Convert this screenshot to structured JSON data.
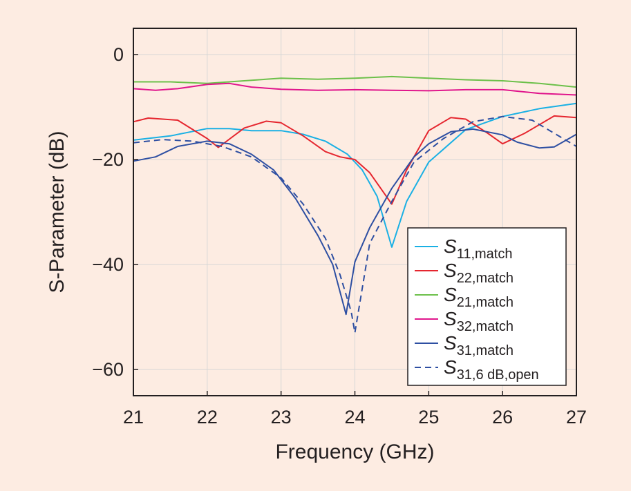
{
  "chart_data": {
    "type": "line",
    "xlabel": "Frequency (GHz)",
    "ylabel": "S-Parameter (dB)",
    "xlim": [
      21,
      27
    ],
    "ylim": [
      -65,
      5
    ],
    "xticks": [
      21,
      22,
      23,
      24,
      25,
      26,
      27
    ],
    "yticks": [
      0,
      -20,
      -40,
      -60
    ],
    "ytick_labels": [
      "0",
      "−20",
      "−40",
      "−60"
    ],
    "grid": true,
    "legend_position": "bottom-right",
    "series": [
      {
        "name": "S",
        "subscript": "11,match",
        "color": "#1ab0e4",
        "dash": "solid",
        "x": [
          21.0,
          21.5,
          22.0,
          22.3,
          22.6,
          23.0,
          23.3,
          23.6,
          23.9,
          24.1,
          24.3,
          24.5,
          24.7,
          25.0,
          25.5,
          26.0,
          26.5,
          27.0
        ],
        "y": [
          -16.3,
          -15.5,
          -14.1,
          -14.1,
          -14.5,
          -14.5,
          -15.2,
          -16.5,
          -19.0,
          -22.0,
          -27.0,
          -36.7,
          -28.0,
          -20.5,
          -14.3,
          -11.8,
          -10.3,
          -9.3
        ]
      },
      {
        "name": "S",
        "subscript": "22,match",
        "color": "#e5262f",
        "dash": "solid",
        "x": [
          21.0,
          21.2,
          21.6,
          22.0,
          22.15,
          22.5,
          22.8,
          23.0,
          23.3,
          23.6,
          23.8,
          24.0,
          24.2,
          24.5,
          24.7,
          25.0,
          25.3,
          25.5,
          25.8,
          26.0,
          26.3,
          26.7,
          27.0
        ],
        "y": [
          -12.8,
          -12.1,
          -12.5,
          -16.0,
          -17.7,
          -14.0,
          -12.7,
          -13.0,
          -15.5,
          -18.5,
          -19.5,
          -20.0,
          -22.5,
          -28.5,
          -22.0,
          -14.5,
          -12.0,
          -12.3,
          -15.0,
          -17.0,
          -15.0,
          -11.7,
          -12.0
        ]
      },
      {
        "name": "S",
        "subscript": "21,match",
        "color": "#6cc04a",
        "dash": "solid",
        "x": [
          21.0,
          21.5,
          22.0,
          22.5,
          23.0,
          23.5,
          24.0,
          24.5,
          25.0,
          25.5,
          26.0,
          26.5,
          27.0
        ],
        "y": [
          -5.2,
          -5.2,
          -5.5,
          -5.0,
          -4.5,
          -4.7,
          -4.5,
          -4.2,
          -4.5,
          -4.8,
          -5.0,
          -5.5,
          -6.2
        ]
      },
      {
        "name": "S",
        "subscript": "32,match",
        "color": "#e0158c",
        "dash": "solid",
        "x": [
          21.0,
          21.3,
          21.6,
          22.0,
          22.3,
          22.6,
          23.0,
          23.5,
          24.0,
          24.5,
          25.0,
          25.5,
          26.0,
          26.5,
          27.0
        ],
        "y": [
          -6.5,
          -6.8,
          -6.5,
          -5.7,
          -5.5,
          -6.2,
          -6.6,
          -6.8,
          -6.7,
          -6.8,
          -6.9,
          -6.7,
          -6.7,
          -7.4,
          -7.7
        ]
      },
      {
        "name": "S",
        "subscript": "31,match",
        "color": "#2e4fa2",
        "dash": "solid",
        "x": [
          21.0,
          21.3,
          21.6,
          21.8,
          22.0,
          22.3,
          22.6,
          22.9,
          23.2,
          23.5,
          23.7,
          23.88,
          24.0,
          24.2,
          24.5,
          24.8,
          25.0,
          25.3,
          25.6,
          26.0,
          26.2,
          26.5,
          26.7,
          27.0
        ],
        "y": [
          -20.3,
          -19.5,
          -17.5,
          -17.0,
          -16.5,
          -17.0,
          -19.0,
          -22.0,
          -27.5,
          -34.5,
          -40.0,
          -49.5,
          -39.5,
          -33.0,
          -25.5,
          -19.5,
          -17.0,
          -14.7,
          -14.2,
          -15.3,
          -16.7,
          -17.8,
          -17.6,
          -15.2
        ]
      },
      {
        "name": "S",
        "subscript": "31,6 dB,open",
        "color": "#2e4fa2",
        "dash": "dashed",
        "x": [
          21.0,
          21.4,
          21.8,
          22.2,
          22.6,
          23.0,
          23.3,
          23.6,
          23.8,
          23.95,
          24.0,
          24.2,
          24.5,
          24.8,
          25.2,
          25.6,
          26.0,
          26.4,
          26.7,
          27.0
        ],
        "y": [
          -16.8,
          -16.2,
          -16.5,
          -17.5,
          -19.5,
          -23.5,
          -28.5,
          -35.0,
          -42.0,
          -49.0,
          -53.0,
          -36.0,
          -28.0,
          -20.5,
          -16.0,
          -12.8,
          -11.8,
          -12.5,
          -15.0,
          -17.5
        ]
      }
    ]
  }
}
